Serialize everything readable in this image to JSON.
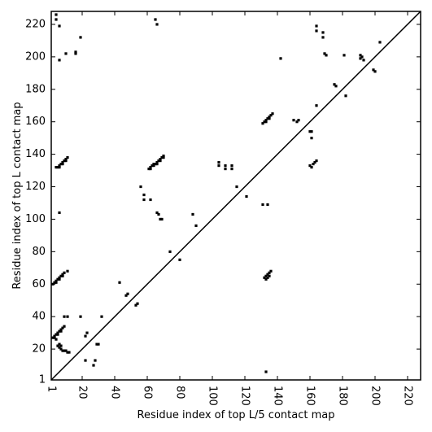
{
  "chart_data": {
    "type": "scatter",
    "title": "",
    "xlabel": "Residue index of top L/5 contact map",
    "ylabel": "Residue index of top L contact map",
    "xlim": [
      1,
      228
    ],
    "ylim": [
      1,
      228
    ],
    "x_ticks": [
      1,
      20,
      40,
      60,
      80,
      100,
      120,
      140,
      160,
      180,
      200,
      220
    ],
    "y_ticks": [
      1,
      20,
      40,
      60,
      80,
      100,
      120,
      140,
      160,
      180,
      200,
      220
    ],
    "diagonal": {
      "from": [
        1,
        1
      ],
      "to": [
        228,
        228
      ]
    },
    "marker": {
      "shape": "square",
      "color": "#000000"
    },
    "series": [
      {
        "label_role": "upper",
        "points": [
          [
            4,
            226
          ],
          [
            4,
            223
          ],
          [
            6,
            219
          ],
          [
            10,
            202
          ],
          [
            16,
            203
          ],
          [
            16,
            202
          ],
          [
            19,
            212
          ],
          [
            6,
            198
          ],
          [
            65,
            223
          ],
          [
            66,
            220
          ],
          [
            164,
            219
          ],
          [
            164,
            216
          ],
          [
            168,
            215
          ],
          [
            168,
            212
          ],
          [
            169,
            202
          ],
          [
            170,
            201
          ],
          [
            142,
            199
          ],
          [
            181,
            201
          ],
          [
            191,
            201
          ],
          [
            192,
            200
          ],
          [
            191,
            199
          ],
          [
            193,
            198
          ],
          [
            199,
            192
          ],
          [
            200,
            191
          ],
          [
            203,
            209
          ],
          [
            175,
            183
          ],
          [
            176,
            182
          ],
          [
            182,
            176
          ],
          [
            164,
            170
          ],
          [
            131,
            159
          ],
          [
            132,
            160
          ],
          [
            133,
            161
          ],
          [
            134,
            162
          ],
          [
            135,
            163
          ],
          [
            136,
            164
          ],
          [
            137,
            165
          ],
          [
            133,
            160
          ],
          [
            135,
            162
          ],
          [
            150,
            161
          ],
          [
            152,
            160
          ],
          [
            153,
            161
          ],
          [
            160,
            154
          ],
          [
            161,
            154
          ],
          [
            161,
            150
          ],
          [
            160,
            133
          ],
          [
            162,
            134
          ],
          [
            163,
            135
          ],
          [
            164,
            136
          ],
          [
            161,
            132
          ],
          [
            104,
            135
          ],
          [
            104,
            133
          ],
          [
            108,
            133
          ],
          [
            108,
            131
          ],
          [
            112,
            133
          ],
          [
            112,
            131
          ],
          [
            61,
            131
          ],
          [
            62,
            132
          ],
          [
            63,
            133
          ],
          [
            64,
            134
          ],
          [
            65,
            134
          ],
          [
            66,
            135
          ],
          [
            67,
            136
          ],
          [
            68,
            137
          ],
          [
            69,
            138
          ],
          [
            70,
            139
          ],
          [
            62,
            131
          ],
          [
            64,
            133
          ],
          [
            66,
            134
          ],
          [
            68,
            136
          ],
          [
            70,
            138
          ],
          [
            4,
            132
          ],
          [
            5,
            132
          ],
          [
            6,
            133
          ],
          [
            7,
            134
          ],
          [
            8,
            135
          ],
          [
            9,
            136
          ],
          [
            10,
            137
          ],
          [
            11,
            138
          ],
          [
            6,
            132
          ],
          [
            8,
            134
          ],
          [
            10,
            136
          ],
          [
            56,
            120
          ],
          [
            58,
            115
          ],
          [
            58,
            112
          ],
          [
            62,
            112
          ],
          [
            66,
            104
          ],
          [
            67,
            103
          ],
          [
            68,
            100
          ],
          [
            69,
            100
          ],
          [
            88,
            103
          ],
          [
            90,
            96
          ],
          [
            115,
            120
          ],
          [
            121,
            114
          ],
          [
            131,
            109
          ],
          [
            134,
            109
          ],
          [
            6,
            104
          ]
        ]
      },
      {
        "label_role": "lower",
        "points": [
          [
            2,
            60
          ],
          [
            3,
            61
          ],
          [
            4,
            62
          ],
          [
            5,
            63
          ],
          [
            6,
            64
          ],
          [
            7,
            65
          ],
          [
            8,
            66
          ],
          [
            9,
            67
          ],
          [
            4,
            61
          ],
          [
            6,
            63
          ],
          [
            8,
            65
          ],
          [
            11,
            68
          ],
          [
            2,
            27
          ],
          [
            3,
            28
          ],
          [
            4,
            29
          ],
          [
            5,
            30
          ],
          [
            6,
            31
          ],
          [
            7,
            32
          ],
          [
            8,
            33
          ],
          [
            9,
            34
          ],
          [
            3,
            27
          ],
          [
            5,
            29
          ],
          [
            7,
            31
          ],
          [
            4,
            26
          ],
          [
            5,
            22
          ],
          [
            6,
            21
          ],
          [
            7,
            20
          ],
          [
            8,
            19
          ],
          [
            9,
            19
          ],
          [
            10,
            19
          ],
          [
            11,
            18
          ],
          [
            12,
            18
          ],
          [
            6,
            23
          ],
          [
            7,
            22
          ],
          [
            9,
            40
          ],
          [
            11,
            40
          ],
          [
            19,
            40
          ],
          [
            22,
            28
          ],
          [
            23,
            30
          ],
          [
            22,
            13
          ],
          [
            28,
            13
          ],
          [
            27,
            10
          ],
          [
            29,
            23
          ],
          [
            30,
            23
          ],
          [
            32,
            40
          ],
          [
            43,
            61
          ],
          [
            47,
            53
          ],
          [
            48,
            54
          ],
          [
            53,
            47
          ],
          [
            54,
            48
          ],
          [
            74,
            80
          ],
          [
            80,
            75
          ],
          [
            132,
            64
          ],
          [
            133,
            65
          ],
          [
            134,
            66
          ],
          [
            135,
            67
          ],
          [
            136,
            68
          ],
          [
            133,
            63
          ],
          [
            134,
            64
          ],
          [
            135,
            65
          ],
          [
            133,
            6
          ]
        ]
      }
    ]
  }
}
